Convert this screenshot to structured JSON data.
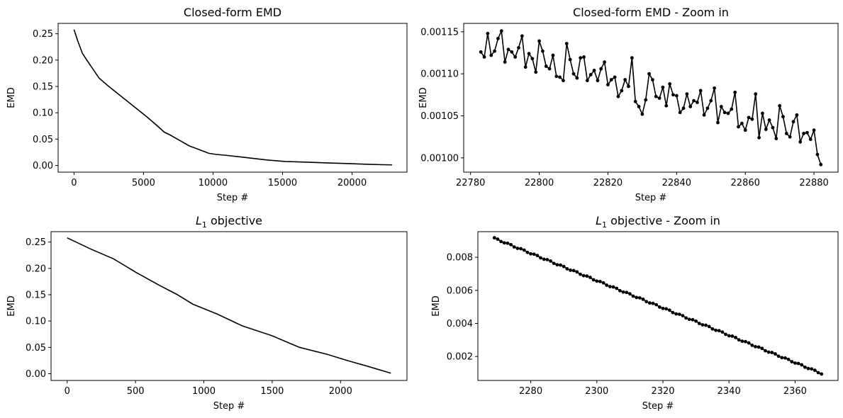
{
  "chart_data": [
    {
      "type": "line",
      "title": "Closed-form EMD",
      "xlabel": "Step #",
      "ylabel": "EMD",
      "xlim": [
        -1140,
        23950
      ],
      "ylim": [
        -0.0128,
        0.2697
      ],
      "xticks": [
        0,
        5000,
        10000,
        15000,
        20000
      ],
      "xtick_labels": [
        "0",
        "5000",
        "10000",
        "15000",
        "20000"
      ],
      "yticks": [
        0.0,
        0.05,
        0.1,
        0.15,
        0.2,
        0.25
      ],
      "ytick_labels": [
        "0.00",
        "0.05",
        "0.10",
        "0.15",
        "0.20",
        "0.25"
      ],
      "grid": false,
      "markers": false,
      "series": [
        {
          "color": "#000000",
          "x": [
            0,
            250,
            600,
            1000,
            1800,
            2500,
            3500,
            4500,
            5300,
            6000,
            6500,
            6900,
            7500,
            8300,
            9000,
            9700,
            10200,
            11000,
            12000,
            13000,
            14000,
            15200,
            16000,
            17000,
            18000,
            19000,
            20000,
            21000,
            22000,
            22882
          ],
          "values": [
            0.258,
            0.238,
            0.213,
            0.197,
            0.166,
            0.15,
            0.129,
            0.108,
            0.091,
            0.075,
            0.063,
            0.058,
            0.049,
            0.037,
            0.03,
            0.023,
            0.021,
            0.019,
            0.016,
            0.013,
            0.01,
            0.0075,
            0.0068,
            0.0059,
            0.005,
            0.0041,
            0.0032,
            0.0023,
            0.0015,
            0.001
          ]
        }
      ]
    },
    {
      "type": "line",
      "title": "Closed-form EMD - Zoom in",
      "xlabel": "Step #",
      "ylabel": "EMD",
      "xlim": [
        22778,
        22887
      ],
      "ylim": [
        0.000983,
        0.00116
      ],
      "xticks": [
        22780,
        22800,
        22820,
        22840,
        22860,
        22880
      ],
      "xtick_labels": [
        "22780",
        "22800",
        "22820",
        "22840",
        "22860",
        "22880"
      ],
      "yticks": [
        0.001,
        0.00105,
        0.0011,
        0.00115
      ],
      "ytick_labels": [
        "0.00100",
        "0.00105",
        "0.00110",
        "0.00115"
      ],
      "grid": false,
      "markers": true,
      "series": [
        {
          "color": "#000000",
          "x_start": 22783,
          "x_step": 1,
          "values": [
            0.001126,
            0.00112,
            0.001148,
            0.001122,
            0.001127,
            0.001142,
            0.001151,
            0.001114,
            0.001129,
            0.001126,
            0.00112,
            0.001131,
            0.001145,
            0.001108,
            0.001124,
            0.001118,
            0.001102,
            0.001139,
            0.001127,
            0.001109,
            0.001106,
            0.001122,
            0.001097,
            0.001096,
            0.001092,
            0.001136,
            0.001117,
            0.0011,
            0.001095,
            0.001119,
            0.00112,
            0.001092,
            0.001099,
            0.001104,
            0.001092,
            0.001106,
            0.001114,
            0.001087,
            0.001093,
            0.001096,
            0.001073,
            0.00108,
            0.001093,
            0.001085,
            0.001119,
            0.001067,
            0.001061,
            0.001052,
            0.001069,
            0.0011,
            0.001093,
            0.001073,
            0.001071,
            0.001084,
            0.001062,
            0.001088,
            0.001075,
            0.001074,
            0.001054,
            0.001059,
            0.001076,
            0.001061,
            0.001068,
            0.001066,
            0.00108,
            0.001051,
            0.001059,
            0.001068,
            0.001083,
            0.001042,
            0.001061,
            0.001054,
            0.001053,
            0.001058,
            0.001078,
            0.001037,
            0.001041,
            0.001033,
            0.001048,
            0.001046,
            0.001076,
            0.001024,
            0.001053,
            0.001034,
            0.001045,
            0.001036,
            0.001023,
            0.001062,
            0.001049,
            0.001029,
            0.001025,
            0.001043,
            0.001051,
            0.001019,
            0.001029,
            0.00103,
            0.001022,
            0.001033,
            0.001004,
            0.000992
          ]
        }
      ]
    },
    {
      "type": "line",
      "title": "L_1 objective",
      "title_math": {
        "base": "L",
        "sub": "1",
        "rest": " objective"
      },
      "xlabel": "Step #",
      "ylabel": "EMD",
      "xlim": [
        -118,
        2486
      ],
      "ylim": [
        -0.0128,
        0.2697
      ],
      "xticks": [
        0,
        500,
        1000,
        1500,
        2000
      ],
      "xtick_labels": [
        "0",
        "500",
        "1000",
        "1500",
        "2000"
      ],
      "yticks": [
        0.0,
        0.05,
        0.1,
        0.15,
        0.2,
        0.25
      ],
      "ytick_labels": [
        "0.00",
        "0.05",
        "0.10",
        "0.15",
        "0.20",
        "0.25"
      ],
      "grid": false,
      "markers": false,
      "series": [
        {
          "color": "#000000",
          "x": [
            0,
            170,
            340,
            500,
            680,
            800,
            920,
            1100,
            1280,
            1500,
            1700,
            1900,
            2050,
            2200,
            2368
          ],
          "values": [
            0.258,
            0.237,
            0.218,
            0.193,
            0.167,
            0.151,
            0.132,
            0.113,
            0.091,
            0.072,
            0.05,
            0.037,
            0.025,
            0.014,
            0.001
          ]
        }
      ]
    },
    {
      "type": "line",
      "title": "L_1 objective - Zoom in",
      "title_math": {
        "base": "L",
        "sub": "1",
        "rest": " objective - Zoom in"
      },
      "xlabel": "Step #",
      "ylabel": "EMD",
      "xlim": [
        2264,
        2373
      ],
      "ylim": [
        0.00055,
        0.00955
      ],
      "xticks": [
        2280,
        2300,
        2320,
        2340,
        2360
      ],
      "xtick_labels": [
        "2280",
        "2300",
        "2320",
        "2340",
        "2360"
      ],
      "yticks": [
        0.002,
        0.004,
        0.006,
        0.008
      ],
      "ytick_labels": [
        "0.002",
        "0.004",
        "0.006",
        "0.008"
      ],
      "grid": false,
      "markers": true,
      "series": [
        {
          "color": "#000000",
          "x_start": 2269,
          "x_end": 2368,
          "y_start": 0.00915,
          "y_end": 0.00097,
          "points": 100,
          "step_pattern_amplitude": 6e-05
        }
      ]
    }
  ]
}
